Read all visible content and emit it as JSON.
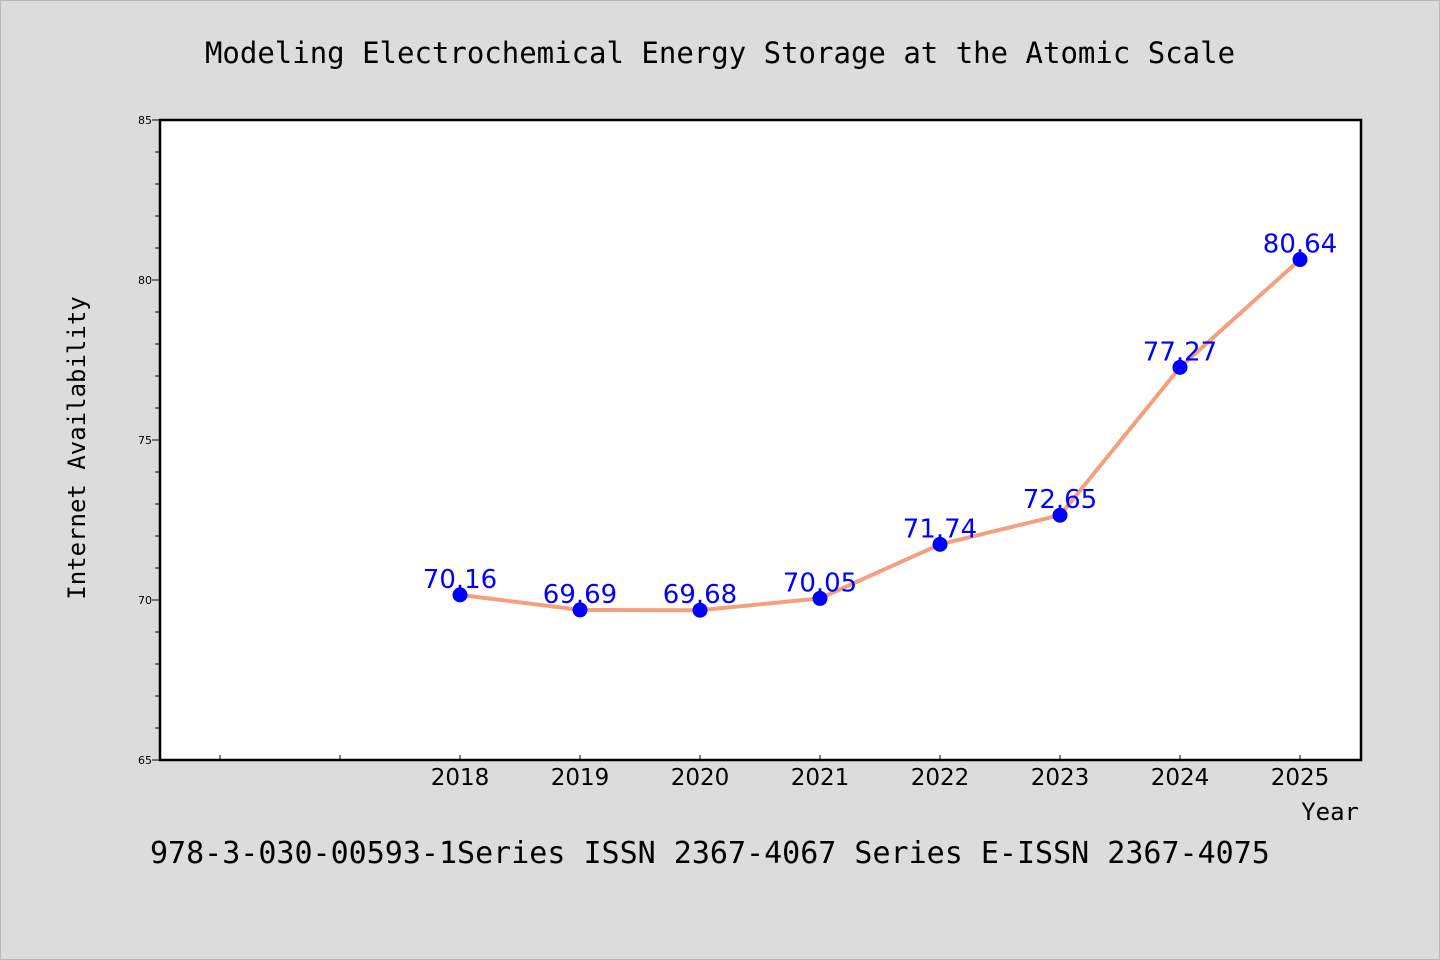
{
  "chart_data": {
    "type": "line",
    "title": "Modeling Electrochemical Energy Storage at the Atomic Scale",
    "xlabel": "Year",
    "ylabel": "Internet Availability",
    "x": [
      "2018",
      "2019",
      "2020",
      "2021",
      "2022",
      "2023",
      "2024",
      "2025"
    ],
    "series": [
      {
        "values": [
          70.16,
          69.69,
          69.68,
          70.05,
          71.74,
          72.65,
          77.27,
          80.64
        ]
      }
    ],
    "data_labels": [
      "70.16",
      "69.69",
      "69.68",
      "70.05",
      "71.74",
      "72.65",
      "77.27",
      "80.64"
    ],
    "ylim": [
      65,
      85
    ],
    "yticks": [
      "65",
      "70",
      "75",
      "80",
      "85"
    ],
    "x_empty_slots_before": 2,
    "grid": false,
    "legend": "none",
    "colors": {
      "line": "#f4a07e",
      "marker": "#0000ff",
      "data_label": "#0000ff",
      "background": "#dcdcdc",
      "plot_area": "#ffffff"
    }
  },
  "footer": "978-3-030-00593-1Series ISSN 2367-4067 Series E-ISSN 2367-4075"
}
